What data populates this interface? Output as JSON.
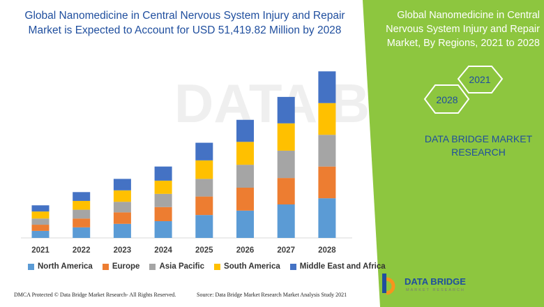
{
  "title": "Global Nanomedicine in Central Nervous System Injury and Repair Market is Expected to Account for USD 51,419.82 Million by 2028",
  "side_panel": {
    "title": "Global Nanomedicine in Central Nervous System Injury and Repair Market, By Regions, 2021 to 2028",
    "hex_year_1": "2021",
    "hex_year_2": "2028",
    "brand": "Data Bridge Market Research",
    "bg_color": "#8dc63f"
  },
  "footer": {
    "left": "DMCA Protected © Data Bridge Market Research- All Rights Reserved.",
    "right": "Source: Data Bridge Market Research Market Analysis Study 2021"
  },
  "logo": {
    "name": "DATA BRIDGE",
    "sub": "MARKET RESEARCH"
  },
  "chart_data": {
    "type": "bar",
    "stacked": true,
    "categories": [
      "2021",
      "2022",
      "2023",
      "2024",
      "2025",
      "2026",
      "2027",
      "2028"
    ],
    "series": [
      {
        "name": "North America",
        "color": "#5b9bd5",
        "values": [
          8,
          12,
          16,
          19,
          26,
          31,
          38,
          45
        ]
      },
      {
        "name": "Europe",
        "color": "#ed7d31",
        "values": [
          7,
          10,
          13,
          16,
          21,
          26,
          30,
          36
        ]
      },
      {
        "name": "Asia Pacific",
        "color": "#a5a5a5",
        "values": [
          7,
          10,
          12,
          15,
          20,
          26,
          31,
          36
        ]
      },
      {
        "name": "South America",
        "color": "#ffc000",
        "values": [
          8,
          10,
          13,
          15,
          21,
          26,
          31,
          36
        ]
      },
      {
        "name": "Middle East and Africa",
        "color": "#4472c4",
        "values": [
          7,
          10,
          13,
          16,
          20,
          25,
          30,
          36
        ]
      }
    ],
    "legend_position": "bottom",
    "grid": false,
    "ylim": [
      0,
      190
    ]
  }
}
